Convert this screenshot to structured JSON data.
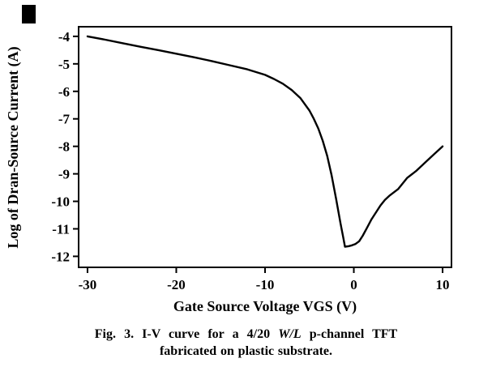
{
  "caption": {
    "line1_prefix": "Fig. 3. I-V curve for a 4/20",
    "line1_wl": "W/L",
    "line1_suffix": "p-channel TFT",
    "line2": "fabricated on plastic substrate."
  },
  "chart_data": {
    "type": "line",
    "title": "",
    "xlabel": "Gate Source Voltage VGS (V)",
    "ylabel": "Log of Dran-Source Current (A)",
    "xlim": [
      -30,
      10
    ],
    "ylim": [
      -12,
      -4
    ],
    "xticks": [
      -30,
      -20,
      -10,
      0,
      10
    ],
    "yticks": [
      -4,
      -5,
      -6,
      -7,
      -8,
      -9,
      -10,
      -11,
      -12
    ],
    "grid": false,
    "legend": "none",
    "line_color": "#000000",
    "series": [
      {
        "name": "I-V curve",
        "x": [
          -30,
          -28,
          -26,
          -24,
          -22,
          -20,
          -18,
          -16,
          -14,
          -12,
          -10,
          -9,
          -8,
          -7,
          -6,
          -5,
          -4.5,
          -4,
          -3.5,
          -3,
          -2.5,
          -2,
          -1.5,
          -1.2,
          -1,
          -0.6,
          -0.2,
          0.2,
          0.6,
          1,
          1.5,
          2,
          2.5,
          3,
          3.5,
          4,
          5,
          6,
          7,
          8,
          9,
          10
        ],
        "y": [
          -4.0,
          -4.12,
          -4.25,
          -4.38,
          -4.5,
          -4.63,
          -4.76,
          -4.9,
          -5.05,
          -5.2,
          -5.4,
          -5.55,
          -5.72,
          -5.95,
          -6.25,
          -6.7,
          -7.0,
          -7.35,
          -7.8,
          -8.35,
          -9.05,
          -9.9,
          -10.8,
          -11.3,
          -11.65,
          -11.63,
          -11.6,
          -11.55,
          -11.45,
          -11.25,
          -10.95,
          -10.65,
          -10.4,
          -10.15,
          -9.95,
          -9.8,
          -9.55,
          -9.15,
          -8.9,
          -8.6,
          -8.3,
          -8.0
        ]
      }
    ]
  }
}
